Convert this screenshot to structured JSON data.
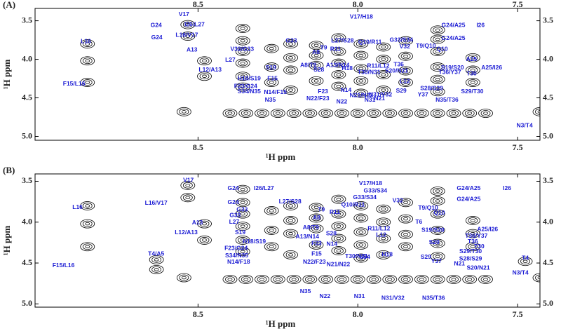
{
  "chart_data": [
    {
      "type": "contour",
      "title": "(A)",
      "x_label": "¹H ppm",
      "y_label": "¹H ppm",
      "xlim": [
        9.01,
        7.43
      ],
      "ylim": [
        3.34,
        5.05
      ],
      "xticks": [
        8.5,
        {
          "value": 8,
          "label": "8.0"
        },
        7.5
      ],
      "yticks": [
        3.5,
        {
          "value": 4,
          "label": "4.0"
        },
        4.5,
        {
          "value": 5,
          "label": "5.0"
        }
      ],
      "top_tick_labels": true,
      "contour_color": "#000000",
      "label_color": "#1c1cd4",
      "peaks": {
        "x": [
          8.846,
          8.846,
          8.846,
          8.532,
          8.532,
          8.48,
          8.48,
          8.544,
          7.43,
          8.36,
          8.36,
          8.36,
          8.36,
          8.36,
          8.36,
          8.27,
          8.27,
          8.27,
          8.21,
          8.21,
          8.21,
          8.21,
          8.13,
          8.13,
          8.13,
          8.13,
          8.06,
          8.06,
          8.06,
          8.06,
          8.06,
          7.99,
          7.99,
          7.99,
          7.99,
          7.99,
          7.92,
          7.92,
          7.92,
          7.92,
          7.85,
          7.85,
          7.85,
          7.85,
          7.75,
          7.75,
          7.75,
          7.75,
          7.75,
          7.75,
          7.64,
          7.64,
          7.64,
          8.4,
          8.35,
          8.3,
          8.25,
          8.2,
          8.15,
          8.1,
          8.05,
          8,
          7.95,
          7.9,
          7.85,
          7.8,
          7.75,
          7.7,
          7.65,
          7.6
        ],
        "y": [
          3.8,
          4.02,
          4.3,
          3.55,
          3.7,
          4.02,
          4.22,
          4.68,
          4.68,
          3.6,
          3.76,
          3.9,
          4.05,
          4.22,
          4.36,
          3.86,
          4.1,
          4.3,
          3.8,
          3.98,
          4.14,
          4.4,
          3.82,
          3.95,
          4.08,
          4.28,
          3.72,
          3.9,
          4.05,
          4.2,
          4.35,
          3.8,
          3.95,
          4.12,
          4.28,
          4.44,
          3.84,
          4,
          4.2,
          4.4,
          3.76,
          3.96,
          4.15,
          4.3,
          3.62,
          3.74,
          3.9,
          4.1,
          4.26,
          4.42,
          3.98,
          4.14,
          4.3,
          4.7,
          4.7,
          4.7,
          4.7,
          4.7,
          4.7,
          4.7,
          4.7,
          4.7,
          4.7,
          4.7,
          4.7,
          4.7,
          4.7,
          4.7,
          4.7,
          4.7
        ]
      },
      "annotations": [
        {
          "text": "V17",
          "x": 8.544,
          "y": 3.42
        },
        {
          "text": "G24",
          "x": 8.631,
          "y": 3.56
        },
        {
          "text": "I26/L27",
          "x": 8.511,
          "y": 3.55
        },
        {
          "text": "V17/H18",
          "x": 7.989,
          "y": 3.45
        },
        {
          "text": "G24/A25",
          "x": 7.701,
          "y": 3.56
        },
        {
          "text": "I26",
          "x": 7.616,
          "y": 3.56
        },
        {
          "text": "L16",
          "x": 8.851,
          "y": 3.77
        },
        {
          "text": "L16/V17",
          "x": 8.535,
          "y": 3.69
        },
        {
          "text": "G24",
          "x": 8.629,
          "y": 3.72
        },
        {
          "text": "G33",
          "x": 8.208,
          "y": 3.76
        },
        {
          "text": "L27/S28",
          "x": 8.048,
          "y": 3.76
        },
        {
          "text": "Q10/R11",
          "x": 7.962,
          "y": 3.78
        },
        {
          "text": "G33/S34",
          "x": 7.864,
          "y": 3.75
        },
        {
          "text": "V32",
          "x": 7.853,
          "y": 3.84
        },
        {
          "text": "T9/Q10",
          "x": 7.787,
          "y": 3.83
        },
        {
          "text": "G24/A25",
          "x": 7.701,
          "y": 3.73
        },
        {
          "text": "Q10",
          "x": 7.736,
          "y": 3.87
        },
        {
          "text": "V32/G33",
          "x": 8.362,
          "y": 3.87
        },
        {
          "text": "T9",
          "x": 8.107,
          "y": 3.85
        },
        {
          "text": "R11",
          "x": 8.07,
          "y": 3.87
        },
        {
          "text": "A8",
          "x": 8.131,
          "y": 3.91
        },
        {
          "text": "A13",
          "x": 8.519,
          "y": 3.88
        },
        {
          "text": "L27",
          "x": 8.399,
          "y": 4.01
        },
        {
          "text": "A25",
          "x": 7.644,
          "y": 4.0
        },
        {
          "text": "A8/T9",
          "x": 8.155,
          "y": 4.08
        },
        {
          "text": "A13/N14",
          "x": 8.063,
          "y": 4.08
        },
        {
          "text": "H18",
          "x": 8.033,
          "y": 4.12
        },
        {
          "text": "R11/L12",
          "x": 7.936,
          "y": 4.09
        },
        {
          "text": "T36",
          "x": 7.872,
          "y": 4.07
        },
        {
          "text": "S19",
          "x": 8.272,
          "y": 4.11
        },
        {
          "text": "L12/A13",
          "x": 8.462,
          "y": 4.14
        },
        {
          "text": "S28",
          "x": 8.122,
          "y": 4.14
        },
        {
          "text": "S20/N21",
          "x": 7.879,
          "y": 4.15
        },
        {
          "text": "T30/N31",
          "x": 7.965,
          "y": 4.17
        },
        {
          "text": "S19/S20",
          "x": 7.704,
          "y": 4.11
        },
        {
          "text": "A25/I26",
          "x": 7.581,
          "y": 4.11
        },
        {
          "text": "T36/Y37",
          "x": 7.712,
          "y": 4.17
        },
        {
          "text": "T30",
          "x": 7.644,
          "y": 4.19
        },
        {
          "text": "H18/S19",
          "x": 8.34,
          "y": 4.25
        },
        {
          "text": "F15",
          "x": 8.267,
          "y": 4.25
        },
        {
          "text": "L12",
          "x": 7.853,
          "y": 4.29
        },
        {
          "text": "F15/L16",
          "x": 8.888,
          "y": 4.32
        },
        {
          "text": "F23/G24",
          "x": 8.351,
          "y": 4.35
        },
        {
          "text": "S34/N35",
          "x": 8.34,
          "y": 4.42
        },
        {
          "text": "N14/F15",
          "x": 8.258,
          "y": 4.43
        },
        {
          "text": "F23",
          "x": 8.109,
          "y": 4.42
        },
        {
          "text": "N14",
          "x": 8.037,
          "y": 4.4
        },
        {
          "text": "S29",
          "x": 7.864,
          "y": 4.41
        },
        {
          "text": "S28/S29",
          "x": 7.769,
          "y": 4.38
        },
        {
          "text": "S29/T30",
          "x": 7.642,
          "y": 4.42
        },
        {
          "text": "Y37",
          "x": 7.796,
          "y": 4.46
        },
        {
          "text": "N21/N22",
          "x": 7.989,
          "y": 4.47
        },
        {
          "text": "N31/V32",
          "x": 7.929,
          "y": 4.46
        },
        {
          "text": "N21",
          "x": 7.932,
          "y": 4.51
        },
        {
          "text": "N22/F23",
          "x": 8.125,
          "y": 4.51
        },
        {
          "text": "N22",
          "x": 8.05,
          "y": 4.55
        },
        {
          "text": "N31",
          "x": 7.962,
          "y": 4.53
        },
        {
          "text": "N35",
          "x": 8.274,
          "y": 4.53
        },
        {
          "text": "N35/T36",
          "x": 7.721,
          "y": 4.53
        },
        {
          "text": "N3/T4",
          "x": 7.478,
          "y": 4.86
        }
      ]
    },
    {
      "type": "contour",
      "title": "(B)",
      "x_label": "¹H ppm",
      "y_label": "¹H ppm",
      "xlim": [
        9.01,
        7.43
      ],
      "ylim": [
        3.41,
        5.04
      ],
      "xticks": [
        8.5,
        {
          "value": 8,
          "label": "8.0"
        },
        7.5
      ],
      "yticks": [
        3.5,
        {
          "value": 4,
          "label": "4.0"
        },
        4.5,
        {
          "value": 5,
          "label": "5.0"
        }
      ],
      "top_tick_labels": false,
      "contour_color": "#000000",
      "label_color": "#1c1cd4",
      "peaks": {
        "x": [
          8.846,
          8.846,
          8.846,
          8.532,
          8.532,
          8.48,
          8.48,
          8.544,
          7.43,
          8.36,
          8.36,
          8.36,
          8.36,
          8.36,
          8.36,
          8.27,
          8.27,
          8.27,
          8.21,
          8.21,
          8.21,
          8.21,
          8.13,
          8.13,
          8.13,
          8.13,
          8.06,
          8.06,
          8.06,
          8.06,
          8.06,
          7.99,
          7.99,
          7.99,
          7.99,
          7.99,
          7.92,
          7.92,
          7.92,
          7.92,
          7.85,
          7.85,
          7.85,
          7.85,
          7.75,
          7.75,
          7.75,
          7.75,
          7.75,
          7.75,
          7.64,
          7.64,
          7.64,
          8.4,
          8.35,
          8.3,
          8.25,
          8.2,
          8.15,
          8.1,
          8.05,
          8,
          7.95,
          7.9,
          7.85,
          7.8,
          7.75,
          7.7,
          7.65,
          7.6,
          8.63,
          8.63,
          7.476
        ],
        "y": [
          3.8,
          4.02,
          4.3,
          3.55,
          3.7,
          4.02,
          4.22,
          4.68,
          4.68,
          3.6,
          3.76,
          3.9,
          4.05,
          4.22,
          4.36,
          3.86,
          4.1,
          4.3,
          3.8,
          3.98,
          4.14,
          4.4,
          3.82,
          3.95,
          4.08,
          4.28,
          3.72,
          3.9,
          4.05,
          4.2,
          4.35,
          3.8,
          3.95,
          4.12,
          4.28,
          4.44,
          3.84,
          4,
          4.2,
          4.4,
          3.76,
          3.96,
          4.15,
          4.3,
          3.62,
          3.74,
          3.9,
          4.1,
          4.26,
          4.42,
          3.98,
          4.14,
          4.3,
          4.7,
          4.7,
          4.7,
          4.7,
          4.7,
          4.7,
          4.7,
          4.7,
          4.7,
          4.7,
          4.7,
          4.7,
          4.7,
          4.7,
          4.7,
          4.7,
          4.7,
          4.46,
          4.58,
          4.48
        ]
      },
      "annotations": [
        {
          "text": "V17",
          "x": 8.53,
          "y": 3.49
        },
        {
          "text": "G24",
          "x": 8.39,
          "y": 3.59
        },
        {
          "text": "I26/L27",
          "x": 8.294,
          "y": 3.59
        },
        {
          "text": "V17/H18",
          "x": 7.96,
          "y": 3.53
        },
        {
          "text": "G33/S34",
          "x": 7.945,
          "y": 3.62
        },
        {
          "text": "G24/A25",
          "x": 7.653,
          "y": 3.59
        },
        {
          "text": "I26",
          "x": 7.533,
          "y": 3.59
        },
        {
          "text": "L16",
          "x": 8.877,
          "y": 3.82
        },
        {
          "text": "L16/V17",
          "x": 8.631,
          "y": 3.77
        },
        {
          "text": "G24",
          "x": 8.39,
          "y": 3.76
        },
        {
          "text": "L27/S28",
          "x": 8.212,
          "y": 3.75
        },
        {
          "text": "G33/S34",
          "x": 7.978,
          "y": 3.7
        },
        {
          "text": "V32",
          "x": 7.875,
          "y": 3.74
        },
        {
          "text": "G24/A25",
          "x": 7.653,
          "y": 3.72
        },
        {
          "text": "Q10/R11",
          "x": 8.015,
          "y": 3.79
        },
        {
          "text": "T9/Q10",
          "x": 7.78,
          "y": 3.83
        },
        {
          "text": "Q10",
          "x": 7.745,
          "y": 3.89
        },
        {
          "text": "G33",
          "x": 8.362,
          "y": 3.85
        },
        {
          "text": "G33",
          "x": 8.384,
          "y": 3.92
        },
        {
          "text": "T9",
          "x": 8.114,
          "y": 3.85
        },
        {
          "text": "R11",
          "x": 8.072,
          "y": 3.88
        },
        {
          "text": "L27",
          "x": 8.387,
          "y": 4.0
        },
        {
          "text": "A13",
          "x": 8.502,
          "y": 4.01
        },
        {
          "text": "A8",
          "x": 8.129,
          "y": 3.95
        },
        {
          "text": "T6",
          "x": 7.809,
          "y": 4.0
        },
        {
          "text": "A8/T9",
          "x": 8.147,
          "y": 4.07
        },
        {
          "text": "R11/L12",
          "x": 7.934,
          "y": 4.08
        },
        {
          "text": "S19/S20",
          "x": 7.765,
          "y": 4.1
        },
        {
          "text": "A25/I26",
          "x": 7.594,
          "y": 4.09
        },
        {
          "text": "L12/A13",
          "x": 8.537,
          "y": 4.13
        },
        {
          "text": "S19",
          "x": 8.368,
          "y": 4.13
        },
        {
          "text": "A13/N14",
          "x": 8.158,
          "y": 4.18
        },
        {
          "text": "S28",
          "x": 8.083,
          "y": 4.14
        },
        {
          "text": "L12",
          "x": 7.927,
          "y": 4.16
        },
        {
          "text": "T36/Y37",
          "x": 7.629,
          "y": 4.17
        },
        {
          "text": "T36",
          "x": 7.64,
          "y": 4.24
        },
        {
          "text": "H18/S19",
          "x": 8.324,
          "y": 4.24
        },
        {
          "text": "N14",
          "x": 8.081,
          "y": 4.27
        },
        {
          "text": "S20",
          "x": 7.761,
          "y": 4.25
        },
        {
          "text": "T30",
          "x": 7.62,
          "y": 4.3
        },
        {
          "text": "F23/G24",
          "x": 8.381,
          "y": 4.32
        },
        {
          "text": "F23",
          "x": 8.129,
          "y": 4.26
        },
        {
          "text": "S29/T30",
          "x": 7.647,
          "y": 4.36
        },
        {
          "text": "T4/A5",
          "x": 8.631,
          "y": 4.39
        },
        {
          "text": "S34/N35",
          "x": 8.379,
          "y": 4.41
        },
        {
          "text": "F15",
          "x": 8.129,
          "y": 4.39
        },
        {
          "text": "T30/N31",
          "x": 8.004,
          "y": 4.42
        },
        {
          "text": "S34",
          "x": 7.978,
          "y": 4.43
        },
        {
          "text": "H18",
          "x": 7.908,
          "y": 4.4
        },
        {
          "text": "S29",
          "x": 7.787,
          "y": 4.43
        },
        {
          "text": "S28/S29",
          "x": 7.647,
          "y": 4.45
        },
        {
          "text": "T4",
          "x": 7.476,
          "y": 4.44
        },
        {
          "text": "N14/F18",
          "x": 8.373,
          "y": 4.49
        },
        {
          "text": "N22/F23",
          "x": 8.136,
          "y": 4.49
        },
        {
          "text": "N21/N22",
          "x": 8.061,
          "y": 4.52
        },
        {
          "text": "Y37",
          "x": 7.754,
          "y": 4.48
        },
        {
          "text": "N21",
          "x": 7.682,
          "y": 4.51
        },
        {
          "text": "S20/N21",
          "x": 7.623,
          "y": 4.56
        },
        {
          "text": "F15/L16",
          "x": 8.921,
          "y": 4.53
        },
        {
          "text": "N3/T4",
          "x": 7.491,
          "y": 4.62
        },
        {
          "text": "N35",
          "x": 8.164,
          "y": 4.85
        },
        {
          "text": "N22",
          "x": 8.103,
          "y": 4.91
        },
        {
          "text": "N31",
          "x": 7.995,
          "y": 4.91
        },
        {
          "text": "N31/V32",
          "x": 7.89,
          "y": 4.93
        },
        {
          "text": "N35/T36",
          "x": 7.763,
          "y": 4.93
        }
      ]
    }
  ]
}
